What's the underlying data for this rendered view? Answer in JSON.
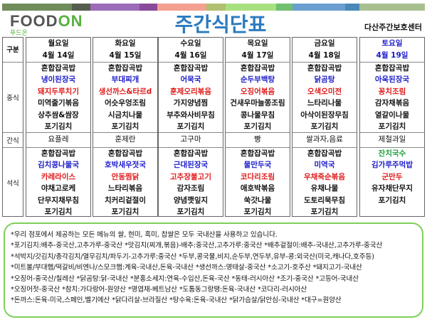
{
  "header": {
    "logo": {
      "word_before": "FOOD",
      "word_accent": "ON",
      "korean": "푸드온",
      "tagline": "..."
    },
    "title": "주간식단표",
    "center_name": "다산주간보호센터",
    "color_bar": [
      "#6f8c5a",
      "#555d4f",
      "#9b6bb8",
      "#8a4a9a",
      "#f4a090",
      "#b0c070",
      "#a8e080",
      "#70c070",
      "#6a9fd0",
      "#4a88b8",
      "#a8c090"
    ]
  },
  "table": {
    "category_header": "구분",
    "row_labels": {
      "lunch": "중식",
      "snack": "간식",
      "dinner": "석식"
    },
    "days": [
      {
        "day": "월요일",
        "date": "4월 14일",
        "lunch": [
          "혼합잡곡밥",
          "냉이된장국",
          "돼지두루치기",
          "미역줄기볶음",
          "상추쌈&쌈장",
          "포기김치"
        ],
        "snack": "요플레",
        "dinner": [
          "혼합잡곡밥",
          "김치콩나물국",
          "카레라이스",
          "야채고로케",
          "단무지채무침",
          "포기김치"
        ]
      },
      {
        "day": "화요일",
        "date": "4월 15일",
        "lunch": [
          "혼합잡곡밥",
          "부대찌개",
          "생선까스&타르d",
          "어슷우엉조림",
          "시금치나물",
          "포기김치"
        ],
        "snack": "훈제란",
        "dinner": [
          "혼합잡곡밥",
          "호박새우젓국",
          "안동찜닭",
          "느타리볶음",
          "치커리겉절이",
          "포기김치"
        ]
      },
      {
        "day": "수요일",
        "date": "4월 16일",
        "lunch": [
          "혼합잡곡밥",
          "어묵국",
          "훈제오리볶음",
          "가지양념찜",
          "부추와사비무침",
          "포기김치"
        ],
        "snack": "고구마",
        "dinner": [
          "혼합잡곡밥",
          "근대된장국",
          "고추장불고기",
          "감자조림",
          "양념깻잎지",
          "포기김치"
        ]
      },
      {
        "day": "목요일",
        "date": "4월 17일",
        "lunch": [
          "혼합잡곡밥",
          "순두부백탕",
          "오징어볶음",
          "건새우마늘쫑조림",
          "콩나물무침",
          "포기김치"
        ],
        "snack": "빵",
        "dinner": [
          "혼합잡곡밥",
          "물만두국",
          "코다리조림",
          "애호박볶음",
          "쑥갓나물",
          "포기김치"
        ]
      },
      {
        "day": "금요일",
        "date": "4월 18일",
        "lunch": [
          "혼합잡곡밥",
          "닭곰탕",
          "오색오미전",
          "느타리나물",
          "아삭이된장무침",
          "포기김치"
        ],
        "snack": "쌀과자,음료",
        "dinner": [
          "혼합잡곡밥",
          "미역국",
          "우채죽순볶음",
          "유채나물",
          "도토리묵무침",
          "포기김치"
        ]
      },
      {
        "day": "토요일",
        "date": "4월 19일",
        "lunch": [
          "혼합잡곡밥",
          "아욱된장국",
          "꽁치조림",
          "감자채볶음",
          "열갈이나물",
          "포기김치"
        ],
        "snack": "제철과일",
        "dinner": [
          "잔치국수",
          "김가루주먹밥",
          "군만두",
          "유자채단무지",
          "포기김치",
          ""
        ]
      }
    ],
    "colors": {
      "soup": "#1a1acc",
      "main": "#e01818",
      "special": "#1fa040",
      "saturday_header": "#1a1acc"
    }
  },
  "notes": [
    "*우리 점포에서 제공하는 모든 메뉴의 쌀, 현미, 흑미, 찹쌀은 모두 국내산을 사용하고 있습니다.",
    "*포기김치:배추-중국산,고추가루-중국산  *맛김치(찌개,볶음)-배추:중국산,고추가루:중국산  *배추겉절이:배추-국내산,고추가루-중국산",
    "*석박지/갓김치/총각김치/열무김치/파두기-고추가루:중국산  *두부,콩국물,비지,순두부,연두부,유부-콩:외국산(미국,캐나다,호주등)",
    "*미트볼/부대햄/떡갈비/비엔나/스모크햄:계육-국내산,돈육-국내산  *생선까스:명태살-중국산  *소고기-호주산  *돼지고기-국내산",
    "*오징어-중국산/칠레산  *닭곰탕:닭-국내산  *분홍소세지:연육-수입산,돈육-국산  *동태-러시아산  *조기-중국산  *고등어-국내산",
    "*오징어젓-중국산  *참치:가다랑어-원양산  *명엽채-베트남산  *도톰동그랑땡:돈육-국내산  *코다리-러시아산",
    "*돈까스:돈육-미국,스페인,벨기에산  *닭다리살-브라질산  *탕수육:돈육-국내산  *닭가슴살/닭안심-국내산  *대구=원양산"
  ]
}
